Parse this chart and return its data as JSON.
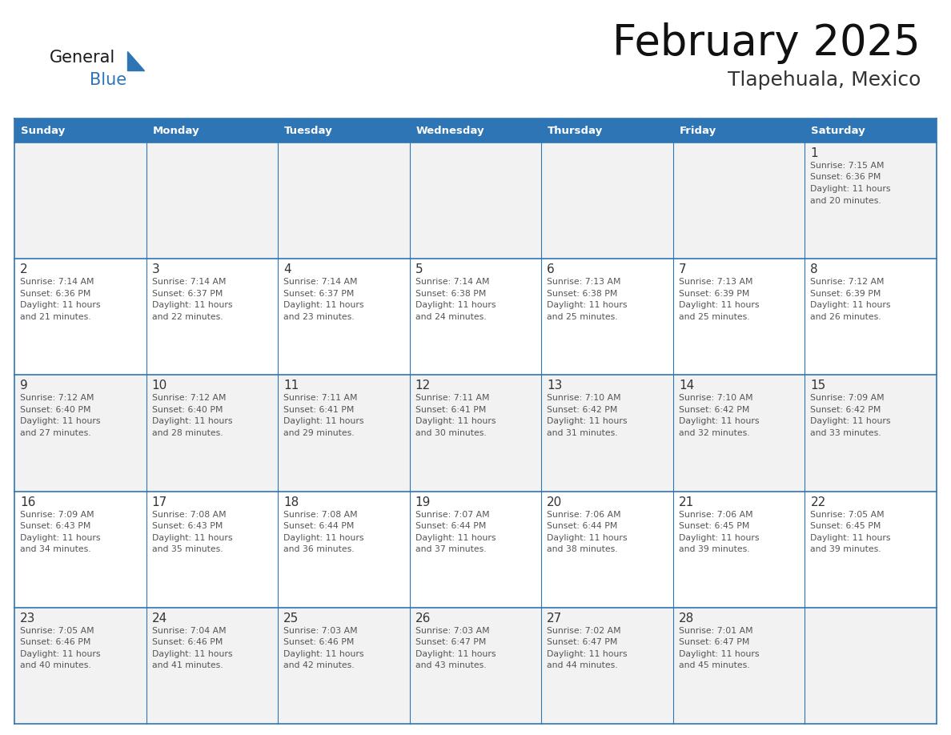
{
  "title": "February 2025",
  "subtitle": "Tlapehuala, Mexico",
  "header_bg_color": "#2E75B6",
  "header_text_color": "#FFFFFF",
  "cell_border_color": "#2E75B6",
  "day_number_color": "#333333",
  "info_text_color": "#555555",
  "background_color": "#FFFFFF",
  "cell_bg_even": "#FFFFFF",
  "cell_bg_odd": "#F2F2F2",
  "days_of_week": [
    "Sunday",
    "Monday",
    "Tuesday",
    "Wednesday",
    "Thursday",
    "Friday",
    "Saturday"
  ],
  "calendar_data": [
    [
      null,
      null,
      null,
      null,
      null,
      null,
      {
        "day": 1,
        "sunrise": "7:15 AM",
        "sunset": "6:36 PM",
        "daylight_hours": 11,
        "daylight_minutes": 20
      }
    ],
    [
      {
        "day": 2,
        "sunrise": "7:14 AM",
        "sunset": "6:36 PM",
        "daylight_hours": 11,
        "daylight_minutes": 21
      },
      {
        "day": 3,
        "sunrise": "7:14 AM",
        "sunset": "6:37 PM",
        "daylight_hours": 11,
        "daylight_minutes": 22
      },
      {
        "day": 4,
        "sunrise": "7:14 AM",
        "sunset": "6:37 PM",
        "daylight_hours": 11,
        "daylight_minutes": 23
      },
      {
        "day": 5,
        "sunrise": "7:14 AM",
        "sunset": "6:38 PM",
        "daylight_hours": 11,
        "daylight_minutes": 24
      },
      {
        "day": 6,
        "sunrise": "7:13 AM",
        "sunset": "6:38 PM",
        "daylight_hours": 11,
        "daylight_minutes": 25
      },
      {
        "day": 7,
        "sunrise": "7:13 AM",
        "sunset": "6:39 PM",
        "daylight_hours": 11,
        "daylight_minutes": 25
      },
      {
        "day": 8,
        "sunrise": "7:12 AM",
        "sunset": "6:39 PM",
        "daylight_hours": 11,
        "daylight_minutes": 26
      }
    ],
    [
      {
        "day": 9,
        "sunrise": "7:12 AM",
        "sunset": "6:40 PM",
        "daylight_hours": 11,
        "daylight_minutes": 27
      },
      {
        "day": 10,
        "sunrise": "7:12 AM",
        "sunset": "6:40 PM",
        "daylight_hours": 11,
        "daylight_minutes": 28
      },
      {
        "day": 11,
        "sunrise": "7:11 AM",
        "sunset": "6:41 PM",
        "daylight_hours": 11,
        "daylight_minutes": 29
      },
      {
        "day": 12,
        "sunrise": "7:11 AM",
        "sunset": "6:41 PM",
        "daylight_hours": 11,
        "daylight_minutes": 30
      },
      {
        "day": 13,
        "sunrise": "7:10 AM",
        "sunset": "6:42 PM",
        "daylight_hours": 11,
        "daylight_minutes": 31
      },
      {
        "day": 14,
        "sunrise": "7:10 AM",
        "sunset": "6:42 PM",
        "daylight_hours": 11,
        "daylight_minutes": 32
      },
      {
        "day": 15,
        "sunrise": "7:09 AM",
        "sunset": "6:42 PM",
        "daylight_hours": 11,
        "daylight_minutes": 33
      }
    ],
    [
      {
        "day": 16,
        "sunrise": "7:09 AM",
        "sunset": "6:43 PM",
        "daylight_hours": 11,
        "daylight_minutes": 34
      },
      {
        "day": 17,
        "sunrise": "7:08 AM",
        "sunset": "6:43 PM",
        "daylight_hours": 11,
        "daylight_minutes": 35
      },
      {
        "day": 18,
        "sunrise": "7:08 AM",
        "sunset": "6:44 PM",
        "daylight_hours": 11,
        "daylight_minutes": 36
      },
      {
        "day": 19,
        "sunrise": "7:07 AM",
        "sunset": "6:44 PM",
        "daylight_hours": 11,
        "daylight_minutes": 37
      },
      {
        "day": 20,
        "sunrise": "7:06 AM",
        "sunset": "6:44 PM",
        "daylight_hours": 11,
        "daylight_minutes": 38
      },
      {
        "day": 21,
        "sunrise": "7:06 AM",
        "sunset": "6:45 PM",
        "daylight_hours": 11,
        "daylight_minutes": 39
      },
      {
        "day": 22,
        "sunrise": "7:05 AM",
        "sunset": "6:45 PM",
        "daylight_hours": 11,
        "daylight_minutes": 39
      }
    ],
    [
      {
        "day": 23,
        "sunrise": "7:05 AM",
        "sunset": "6:46 PM",
        "daylight_hours": 11,
        "daylight_minutes": 40
      },
      {
        "day": 24,
        "sunrise": "7:04 AM",
        "sunset": "6:46 PM",
        "daylight_hours": 11,
        "daylight_minutes": 41
      },
      {
        "day": 25,
        "sunrise": "7:03 AM",
        "sunset": "6:46 PM",
        "daylight_hours": 11,
        "daylight_minutes": 42
      },
      {
        "day": 26,
        "sunrise": "7:03 AM",
        "sunset": "6:47 PM",
        "daylight_hours": 11,
        "daylight_minutes": 43
      },
      {
        "day": 27,
        "sunrise": "7:02 AM",
        "sunset": "6:47 PM",
        "daylight_hours": 11,
        "daylight_minutes": 44
      },
      {
        "day": 28,
        "sunrise": "7:01 AM",
        "sunset": "6:47 PM",
        "daylight_hours": 11,
        "daylight_minutes": 45
      },
      null
    ]
  ]
}
